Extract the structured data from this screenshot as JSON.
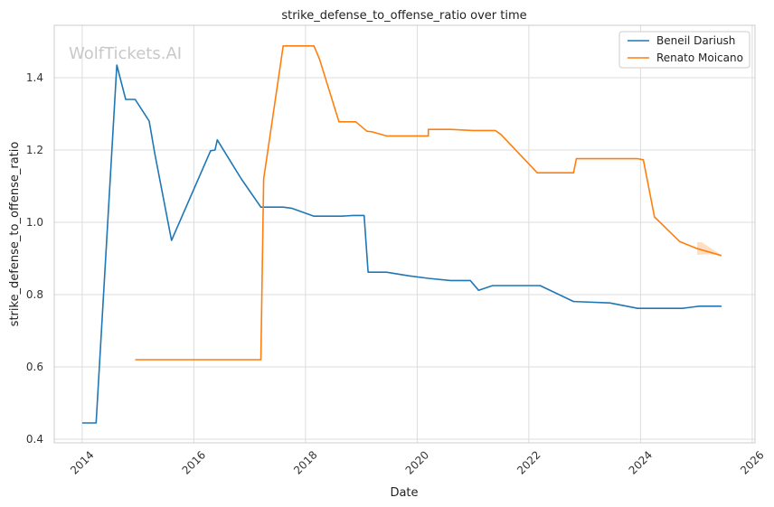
{
  "chart_data": {
    "type": "line",
    "title": "strike_defense_to_offense_ratio over time",
    "xlabel": "Date",
    "ylabel": "strike_defense_to_offense_ratio",
    "watermark": "WolfTickets.AI",
    "x_ticks": [
      "2014",
      "2016",
      "2018",
      "2020",
      "2022",
      "2024",
      "2026"
    ],
    "y_ticks": [
      "0.4",
      "0.6",
      "0.8",
      "1.0",
      "1.2",
      "1.4"
    ],
    "xlim": [
      2013.5,
      2026.05
    ],
    "ylim": [
      0.39,
      1.545
    ],
    "grid": true,
    "legend_position": "top-right",
    "series": [
      {
        "name": "Beneil Dariush",
        "color": "#1f77b4",
        "x": [
          2014.0,
          2014.25,
          2014.62,
          2014.78,
          2014.95,
          2015.2,
          2015.3,
          2015.6,
          2016.3,
          2016.38,
          2016.42,
          2016.85,
          2017.2,
          2017.6,
          2017.75,
          2018.15,
          2018.65,
          2018.85,
          2019.05,
          2019.12,
          2019.45,
          2019.85,
          2020.2,
          2020.6,
          2020.95,
          2021.1,
          2021.35,
          2021.6,
          2022.2,
          2022.8,
          2023.45,
          2023.95,
          2024.2,
          2024.75,
          2025.05,
          2025.45
        ],
        "y": [
          0.445,
          0.445,
          1.435,
          1.34,
          1.34,
          1.28,
          1.19,
          0.95,
          1.198,
          1.2,
          1.228,
          1.12,
          1.042,
          1.042,
          1.039,
          1.017,
          1.017,
          1.019,
          1.019,
          0.862,
          0.862,
          0.852,
          0.845,
          0.839,
          0.839,
          0.812,
          0.825,
          0.825,
          0.825,
          0.781,
          0.777,
          0.762,
          0.762,
          0.762,
          0.768,
          0.768
        ]
      },
      {
        "name": "Renato Moicano",
        "color": "#ff7f0e",
        "x": [
          2014.95,
          2017.2,
          2017.25,
          2017.6,
          2018.15,
          2018.25,
          2018.6,
          2018.9,
          2019.1,
          2019.2,
          2019.45,
          2020.2,
          2020.2,
          2020.6,
          2021.0,
          2021.4,
          2021.5,
          2022.15,
          2022.8,
          2022.85,
          2023.95,
          2024.05,
          2024.25,
          2024.7,
          2025.0,
          2025.45
        ],
        "y": [
          0.62,
          0.62,
          1.12,
          1.488,
          1.488,
          1.452,
          1.278,
          1.278,
          1.252,
          1.25,
          1.239,
          1.239,
          1.257,
          1.257,
          1.254,
          1.254,
          1.243,
          1.137,
          1.137,
          1.176,
          1.176,
          1.173,
          1.015,
          0.947,
          0.928,
          0.908
        ]
      }
    ]
  }
}
